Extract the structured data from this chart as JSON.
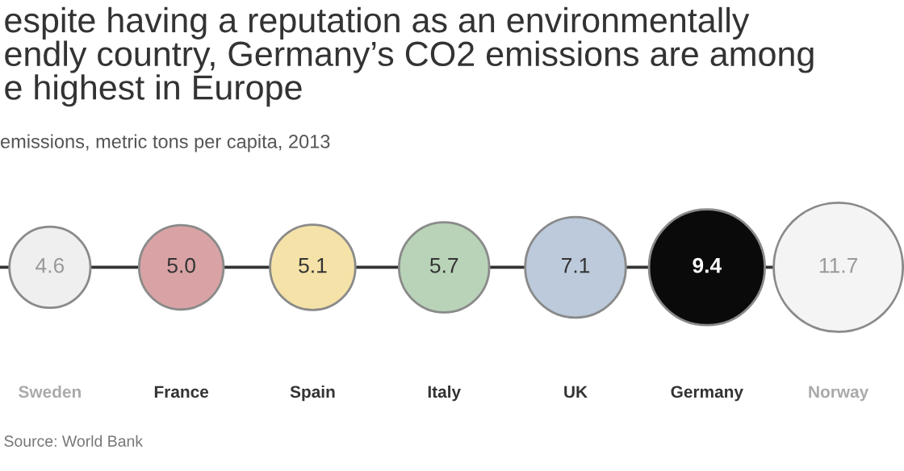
{
  "chart_data": {
    "type": "other",
    "title": "espite having a reputation as an environmentally\nendly country, Germany’s CO2 emissions are among\ne highest in Europe",
    "subtitle": "emissions, metric tons per capita, 2013",
    "categories": [
      "Sweden",
      "France",
      "Spain",
      "Italy",
      "UK",
      "Germany",
      "Norway"
    ],
    "values": [
      4.6,
      5.0,
      5.1,
      5.7,
      7.1,
      9.4,
      11.7
    ],
    "colors": [
      "#efefef",
      "#d9a3a5",
      "#f5e2a8",
      "#b9d3b8",
      "#bccadb",
      "#0a0a0a",
      "#f4f4f4"
    ],
    "value_labels": [
      "4.6",
      "5.0",
      "5.1",
      "5.7",
      "7.1",
      "9.4",
      "11.7"
    ],
    "annotations": [
      "Source: World Bank"
    ]
  }
}
